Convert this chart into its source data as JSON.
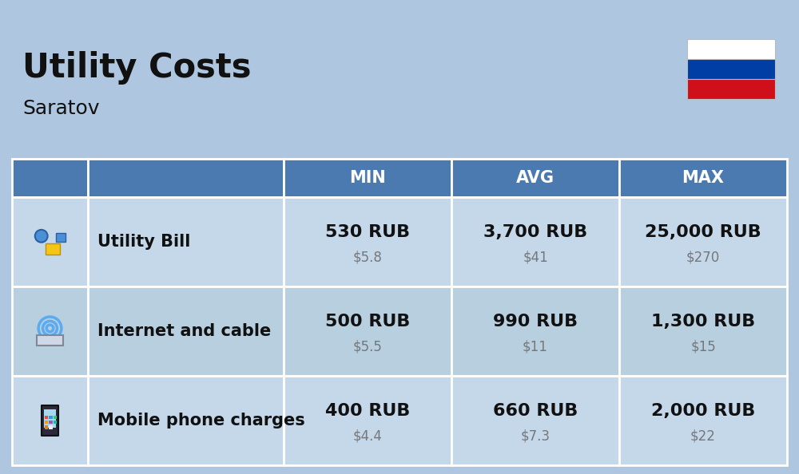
{
  "title": "Utility Costs",
  "subtitle": "Saratov",
  "bg_color": "#aec6df",
  "header_bg_color": "#4a7ab0",
  "header_text_color": "#ffffff",
  "row_bg_colors": [
    "#c5d8ea",
    "#b8cfdf"
  ],
  "cell_border_color": "#ffffff",
  "col_headers": [
    "MIN",
    "AVG",
    "MAX"
  ],
  "rows": [
    {
      "label": "Utility Bill",
      "min_rub": "530 RUB",
      "min_usd": "$5.8",
      "avg_rub": "3,700 RUB",
      "avg_usd": "$41",
      "max_rub": "25,000 RUB",
      "max_usd": "$270"
    },
    {
      "label": "Internet and cable",
      "min_rub": "500 RUB",
      "min_usd": "$5.5",
      "avg_rub": "990 RUB",
      "avg_usd": "$11",
      "max_rub": "1,300 RUB",
      "max_usd": "$15"
    },
    {
      "label": "Mobile phone charges",
      "min_rub": "400 RUB",
      "min_usd": "$4.4",
      "avg_rub": "660 RUB",
      "avg_usd": "$7.3",
      "max_rub": "2,000 RUB",
      "max_usd": "$22"
    }
  ],
  "flag_colors": [
    "#ffffff",
    "#003DA5",
    "#CF101A"
  ],
  "title_fontsize": 30,
  "subtitle_fontsize": 18,
  "rub_fontsize": 16,
  "usd_fontsize": 12,
  "label_fontsize": 15,
  "header_fontsize": 15,
  "fig_width": 10.0,
  "fig_height": 5.94,
  "dpi": 100
}
